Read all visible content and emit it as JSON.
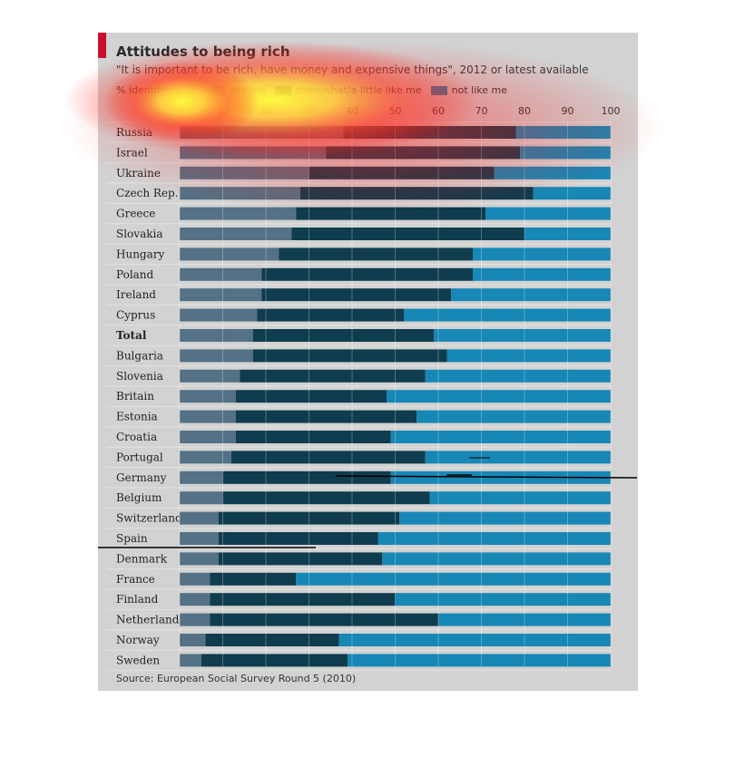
{
  "title": "Attitudes to being rich",
  "subtitle": "\"It is important to be rich, have money and expensive things\", 2012 or latest available",
  "legend": {
    "prefix": "% identifying as:",
    "items": [
      "like me",
      "somewhat/a little like me",
      "not like me"
    ]
  },
  "source": "Source: European Social Survey Round 5 (2010)",
  "colors": {
    "panel": "#d2d2d2",
    "accent": "#c8102e",
    "like_me": "#547185",
    "somewhat": "#0f3c4e",
    "not_like_me": "#1787b5"
  },
  "chart_data": {
    "type": "bar",
    "orientation": "horizontal",
    "stacked": true,
    "title": "Attitudes to being rich",
    "xlim": [
      0,
      100
    ],
    "xticks": [
      0,
      10,
      20,
      30,
      40,
      50,
      60,
      70,
      80,
      90,
      100
    ],
    "grid": true,
    "legend_position": "top",
    "highlight": "Total",
    "categories": [
      "Russia",
      "Israel",
      "Ukraine",
      "Czech Rep.",
      "Greece",
      "Slovakia",
      "Hungary",
      "Poland",
      "Ireland",
      "Cyprus",
      "Total",
      "Bulgaria",
      "Slovenia",
      "Britain",
      "Estonia",
      "Croatia",
      "Portugal",
      "Germany",
      "Belgium",
      "Switzerland",
      "Spain",
      "Denmark",
      "France",
      "Finland",
      "Netherlands",
      "Norway",
      "Sweden"
    ],
    "series": [
      {
        "name": "like me",
        "values": [
          38,
          34,
          30,
          28,
          27,
          26,
          23,
          19,
          19,
          18,
          17,
          17,
          14,
          13,
          13,
          13,
          12,
          10,
          10,
          9,
          9,
          9,
          7,
          7,
          7,
          6,
          5
        ]
      },
      {
        "name": "somewhat/a little like me",
        "values": [
          40,
          45,
          43,
          54,
          44,
          54,
          45,
          49,
          44,
          34,
          42,
          45,
          43,
          35,
          42,
          36,
          45,
          39,
          48,
          42,
          37,
          38,
          20,
          43,
          53,
          31,
          34
        ]
      },
      {
        "name": "not like me",
        "values": [
          22,
          21,
          27,
          18,
          29,
          20,
          32,
          32,
          37,
          48,
          41,
          38,
          43,
          52,
          45,
          51,
          43,
          51,
          42,
          49,
          54,
          53,
          73,
          50,
          40,
          63,
          61
        ]
      }
    ]
  }
}
